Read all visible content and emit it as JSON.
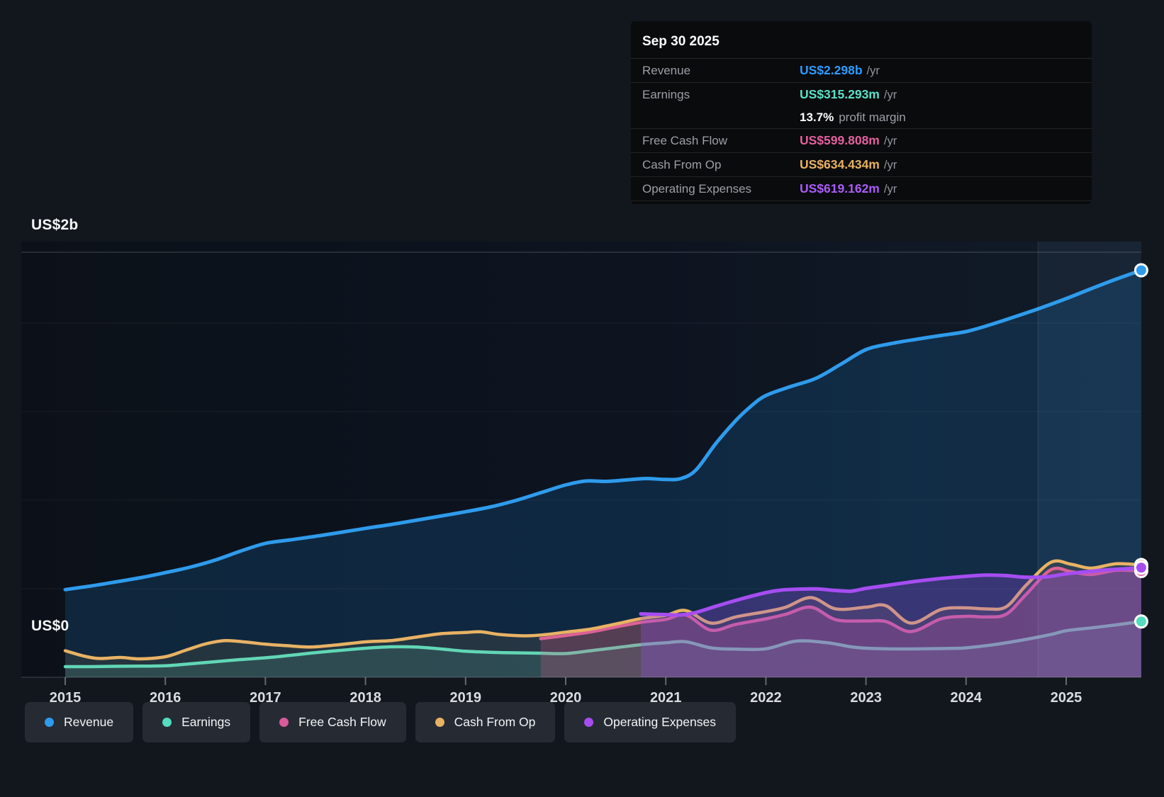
{
  "tooltip": {
    "date": "Sep 30 2025",
    "rows": [
      {
        "label": "Revenue",
        "value": "US$2.298b",
        "suffix": "/yr",
        "color": "#2e9bff"
      },
      {
        "label": "Earnings",
        "value": "US$315.293m",
        "suffix": "/yr",
        "color": "#5ce0c8",
        "sub_value": "13.7%",
        "sub_label": "profit margin"
      },
      {
        "label": "Free Cash Flow",
        "value": "US$599.808m",
        "suffix": "/yr",
        "color": "#e2609f"
      },
      {
        "label": "Cash From Op",
        "value": "US$634.434m",
        "suffix": "/yr",
        "color": "#e9b262"
      },
      {
        "label": "Operating Expenses",
        "value": "US$619.162m",
        "suffix": "/yr",
        "color": "#ab5cf7"
      }
    ]
  },
  "legend": {
    "items": [
      {
        "label": "Revenue",
        "color": "#2f9bec"
      },
      {
        "label": "Earnings",
        "color": "#53dcc0"
      },
      {
        "label": "Free Cash Flow",
        "color": "#da5a9b"
      },
      {
        "label": "Cash From Op",
        "color": "#e8b264"
      },
      {
        "label": "Operating Expenses",
        "color": "#a64df2"
      }
    ]
  },
  "chart_data": {
    "type": "area",
    "unit": "US$ millions",
    "x_axis": {
      "ticks": [
        2015,
        2016,
        2017,
        2018,
        2019,
        2020,
        2021,
        2022,
        2023,
        2024,
        2025
      ]
    },
    "y_axis": {
      "min": 0,
      "max_label": "US$2b",
      "min_label": "US$0",
      "labeled_gridline_m": 2000,
      "gridlines_m": [
        2000,
        1500,
        1000,
        500
      ]
    },
    "highlight_band": {
      "start": 2024.72,
      "end": 2025.75
    },
    "series": [
      {
        "name": "Revenue",
        "key": "revenue",
        "color": "#2f9bec",
        "fill": "rgba(33,150,243,0.16)",
        "width": 5,
        "points": [
          [
            2015,
            495
          ],
          [
            2015.25,
            515
          ],
          [
            2015.5,
            538
          ],
          [
            2015.75,
            562
          ],
          [
            2016,
            591
          ],
          [
            2016.25,
            622
          ],
          [
            2016.5,
            662
          ],
          [
            2016.75,
            712
          ],
          [
            2017,
            756
          ],
          [
            2017.25,
            776
          ],
          [
            2017.5,
            796
          ],
          [
            2017.75,
            818
          ],
          [
            2018,
            841
          ],
          [
            2018.25,
            862
          ],
          [
            2018.5,
            886
          ],
          [
            2018.75,
            910
          ],
          [
            2019,
            935
          ],
          [
            2019.25,
            962
          ],
          [
            2019.5,
            998
          ],
          [
            2019.75,
            1042
          ],
          [
            2020,
            1086
          ],
          [
            2020.2,
            1108
          ],
          [
            2020.4,
            1106
          ],
          [
            2020.6,
            1114
          ],
          [
            2020.8,
            1122
          ],
          [
            2021,
            1117
          ],
          [
            2021.15,
            1122
          ],
          [
            2021.3,
            1170
          ],
          [
            2021.5,
            1320
          ],
          [
            2021.7,
            1450
          ],
          [
            2021.85,
            1530
          ],
          [
            2022,
            1591
          ],
          [
            2022.25,
            1642
          ],
          [
            2022.5,
            1688
          ],
          [
            2022.75,
            1768
          ],
          [
            2023,
            1850
          ],
          [
            2023.25,
            1884
          ],
          [
            2023.5,
            1908
          ],
          [
            2023.75,
            1930
          ],
          [
            2024,
            1952
          ],
          [
            2024.25,
            1992
          ],
          [
            2024.5,
            2038
          ],
          [
            2024.75,
            2086
          ],
          [
            2025,
            2138
          ],
          [
            2025.25,
            2194
          ],
          [
            2025.5,
            2248
          ],
          [
            2025.75,
            2298
          ]
        ]
      },
      {
        "name": "Earnings",
        "key": "earnings",
        "color": "#53dcc0",
        "fill": "rgba(90,220,195,0.14)",
        "width": 4.5,
        "points": [
          [
            2015,
            60
          ],
          [
            2015.25,
            60
          ],
          [
            2015.5,
            62
          ],
          [
            2015.75,
            63
          ],
          [
            2016,
            65
          ],
          [
            2016.25,
            76
          ],
          [
            2016.5,
            88
          ],
          [
            2016.75,
            100
          ],
          [
            2017,
            110
          ],
          [
            2017.25,
            124
          ],
          [
            2017.5,
            139
          ],
          [
            2017.75,
            152
          ],
          [
            2018,
            164
          ],
          [
            2018.25,
            172
          ],
          [
            2018.5,
            171
          ],
          [
            2018.75,
            160
          ],
          [
            2019,
            147
          ],
          [
            2019.25,
            141
          ],
          [
            2019.5,
            138
          ],
          [
            2019.75,
            136
          ],
          [
            2020,
            134
          ],
          [
            2020.25,
            150
          ],
          [
            2020.5,
            167
          ],
          [
            2020.75,
            184
          ],
          [
            2021,
            195
          ],
          [
            2021.2,
            201
          ],
          [
            2021.45,
            166
          ],
          [
            2021.7,
            159
          ],
          [
            2022,
            161
          ],
          [
            2022.3,
            204
          ],
          [
            2022.6,
            196
          ],
          [
            2022.85,
            172
          ],
          [
            2023,
            164
          ],
          [
            2023.3,
            160
          ],
          [
            2023.6,
            161
          ],
          [
            2023.85,
            163
          ],
          [
            2024,
            166
          ],
          [
            2024.3,
            186
          ],
          [
            2024.6,
            214
          ],
          [
            2024.85,
            242
          ],
          [
            2025,
            263
          ],
          [
            2025.25,
            279
          ],
          [
            2025.5,
            296
          ],
          [
            2025.75,
            315
          ]
        ]
      },
      {
        "name": "Free Cash Flow",
        "key": "free-cash-flow",
        "color": "#da5a9b",
        "fill": "rgba(214,80,140,0.26)",
        "width": 4.5,
        "points": [
          [
            2019.75,
            218
          ],
          [
            2020,
            236
          ],
          [
            2020.25,
            256
          ],
          [
            2020.5,
            284
          ],
          [
            2020.75,
            310
          ],
          [
            2021,
            327
          ],
          [
            2021.2,
            352
          ],
          [
            2021.45,
            266
          ],
          [
            2021.7,
            299
          ],
          [
            2022,
            330
          ],
          [
            2022.2,
            356
          ],
          [
            2022.45,
            396
          ],
          [
            2022.7,
            325
          ],
          [
            2023,
            318
          ],
          [
            2023.2,
            315
          ],
          [
            2023.45,
            258
          ],
          [
            2023.75,
            330
          ],
          [
            2024,
            344
          ],
          [
            2024.2,
            341
          ],
          [
            2024.4,
            356
          ],
          [
            2024.6,
            468
          ],
          [
            2024.85,
            608
          ],
          [
            2025.05,
            596
          ],
          [
            2025.25,
            580
          ],
          [
            2025.5,
            604
          ],
          [
            2025.75,
            600
          ]
        ]
      },
      {
        "name": "Cash From Op",
        "key": "cash-from-op",
        "color": "#e8b264",
        "fill": "rgba(235,179,90,0.10)",
        "width": 4.5,
        "points": [
          [
            2015,
            150
          ],
          [
            2015.2,
            118
          ],
          [
            2015.35,
            106
          ],
          [
            2015.55,
            112
          ],
          [
            2015.75,
            104
          ],
          [
            2016,
            116
          ],
          [
            2016.2,
            152
          ],
          [
            2016.4,
            188
          ],
          [
            2016.6,
            207
          ],
          [
            2016.8,
            199
          ],
          [
            2017,
            187
          ],
          [
            2017.2,
            179
          ],
          [
            2017.45,
            171
          ],
          [
            2017.7,
            182
          ],
          [
            2018,
            200
          ],
          [
            2018.25,
            207
          ],
          [
            2018.5,
            226
          ],
          [
            2018.75,
            246
          ],
          [
            2019,
            253
          ],
          [
            2019.15,
            257
          ],
          [
            2019.35,
            241
          ],
          [
            2019.6,
            234
          ],
          [
            2019.8,
            241
          ],
          [
            2020,
            255
          ],
          [
            2020.25,
            272
          ],
          [
            2020.5,
            301
          ],
          [
            2020.75,
            331
          ],
          [
            2021,
            350
          ],
          [
            2021.2,
            377
          ],
          [
            2021.45,
            306
          ],
          [
            2021.7,
            341
          ],
          [
            2022,
            371
          ],
          [
            2022.2,
            396
          ],
          [
            2022.45,
            450
          ],
          [
            2022.7,
            386
          ],
          [
            2023,
            396
          ],
          [
            2023.2,
            404
          ],
          [
            2023.45,
            306
          ],
          [
            2023.75,
            383
          ],
          [
            2024,
            392
          ],
          [
            2024.2,
            386
          ],
          [
            2024.4,
            398
          ],
          [
            2024.6,
            520
          ],
          [
            2024.85,
            650
          ],
          [
            2025.05,
            638
          ],
          [
            2025.25,
            616
          ],
          [
            2025.5,
            641
          ],
          [
            2025.75,
            634
          ]
        ]
      },
      {
        "name": "Operating Expenses",
        "key": "operating-expenses",
        "color": "#a64df2",
        "fill": "rgba(150,80,230,0.30)",
        "width": 5,
        "points": [
          [
            2020.75,
            358
          ],
          [
            2021,
            354
          ],
          [
            2021.15,
            352
          ],
          [
            2021.3,
            366
          ],
          [
            2021.5,
            401
          ],
          [
            2021.75,
            442
          ],
          [
            2022,
            478
          ],
          [
            2022.15,
            492
          ],
          [
            2022.3,
            497
          ],
          [
            2022.5,
            499
          ],
          [
            2022.7,
            490
          ],
          [
            2022.85,
            486
          ],
          [
            2023,
            502
          ],
          [
            2023.25,
            522
          ],
          [
            2023.5,
            542
          ],
          [
            2023.75,
            558
          ],
          [
            2024,
            570
          ],
          [
            2024.2,
            577
          ],
          [
            2024.4,
            574
          ],
          [
            2024.6,
            565
          ],
          [
            2024.8,
            567
          ],
          [
            2025,
            584
          ],
          [
            2025.2,
            596
          ],
          [
            2025.4,
            606
          ],
          [
            2025.6,
            613
          ],
          [
            2025.75,
            619
          ]
        ]
      }
    ]
  }
}
